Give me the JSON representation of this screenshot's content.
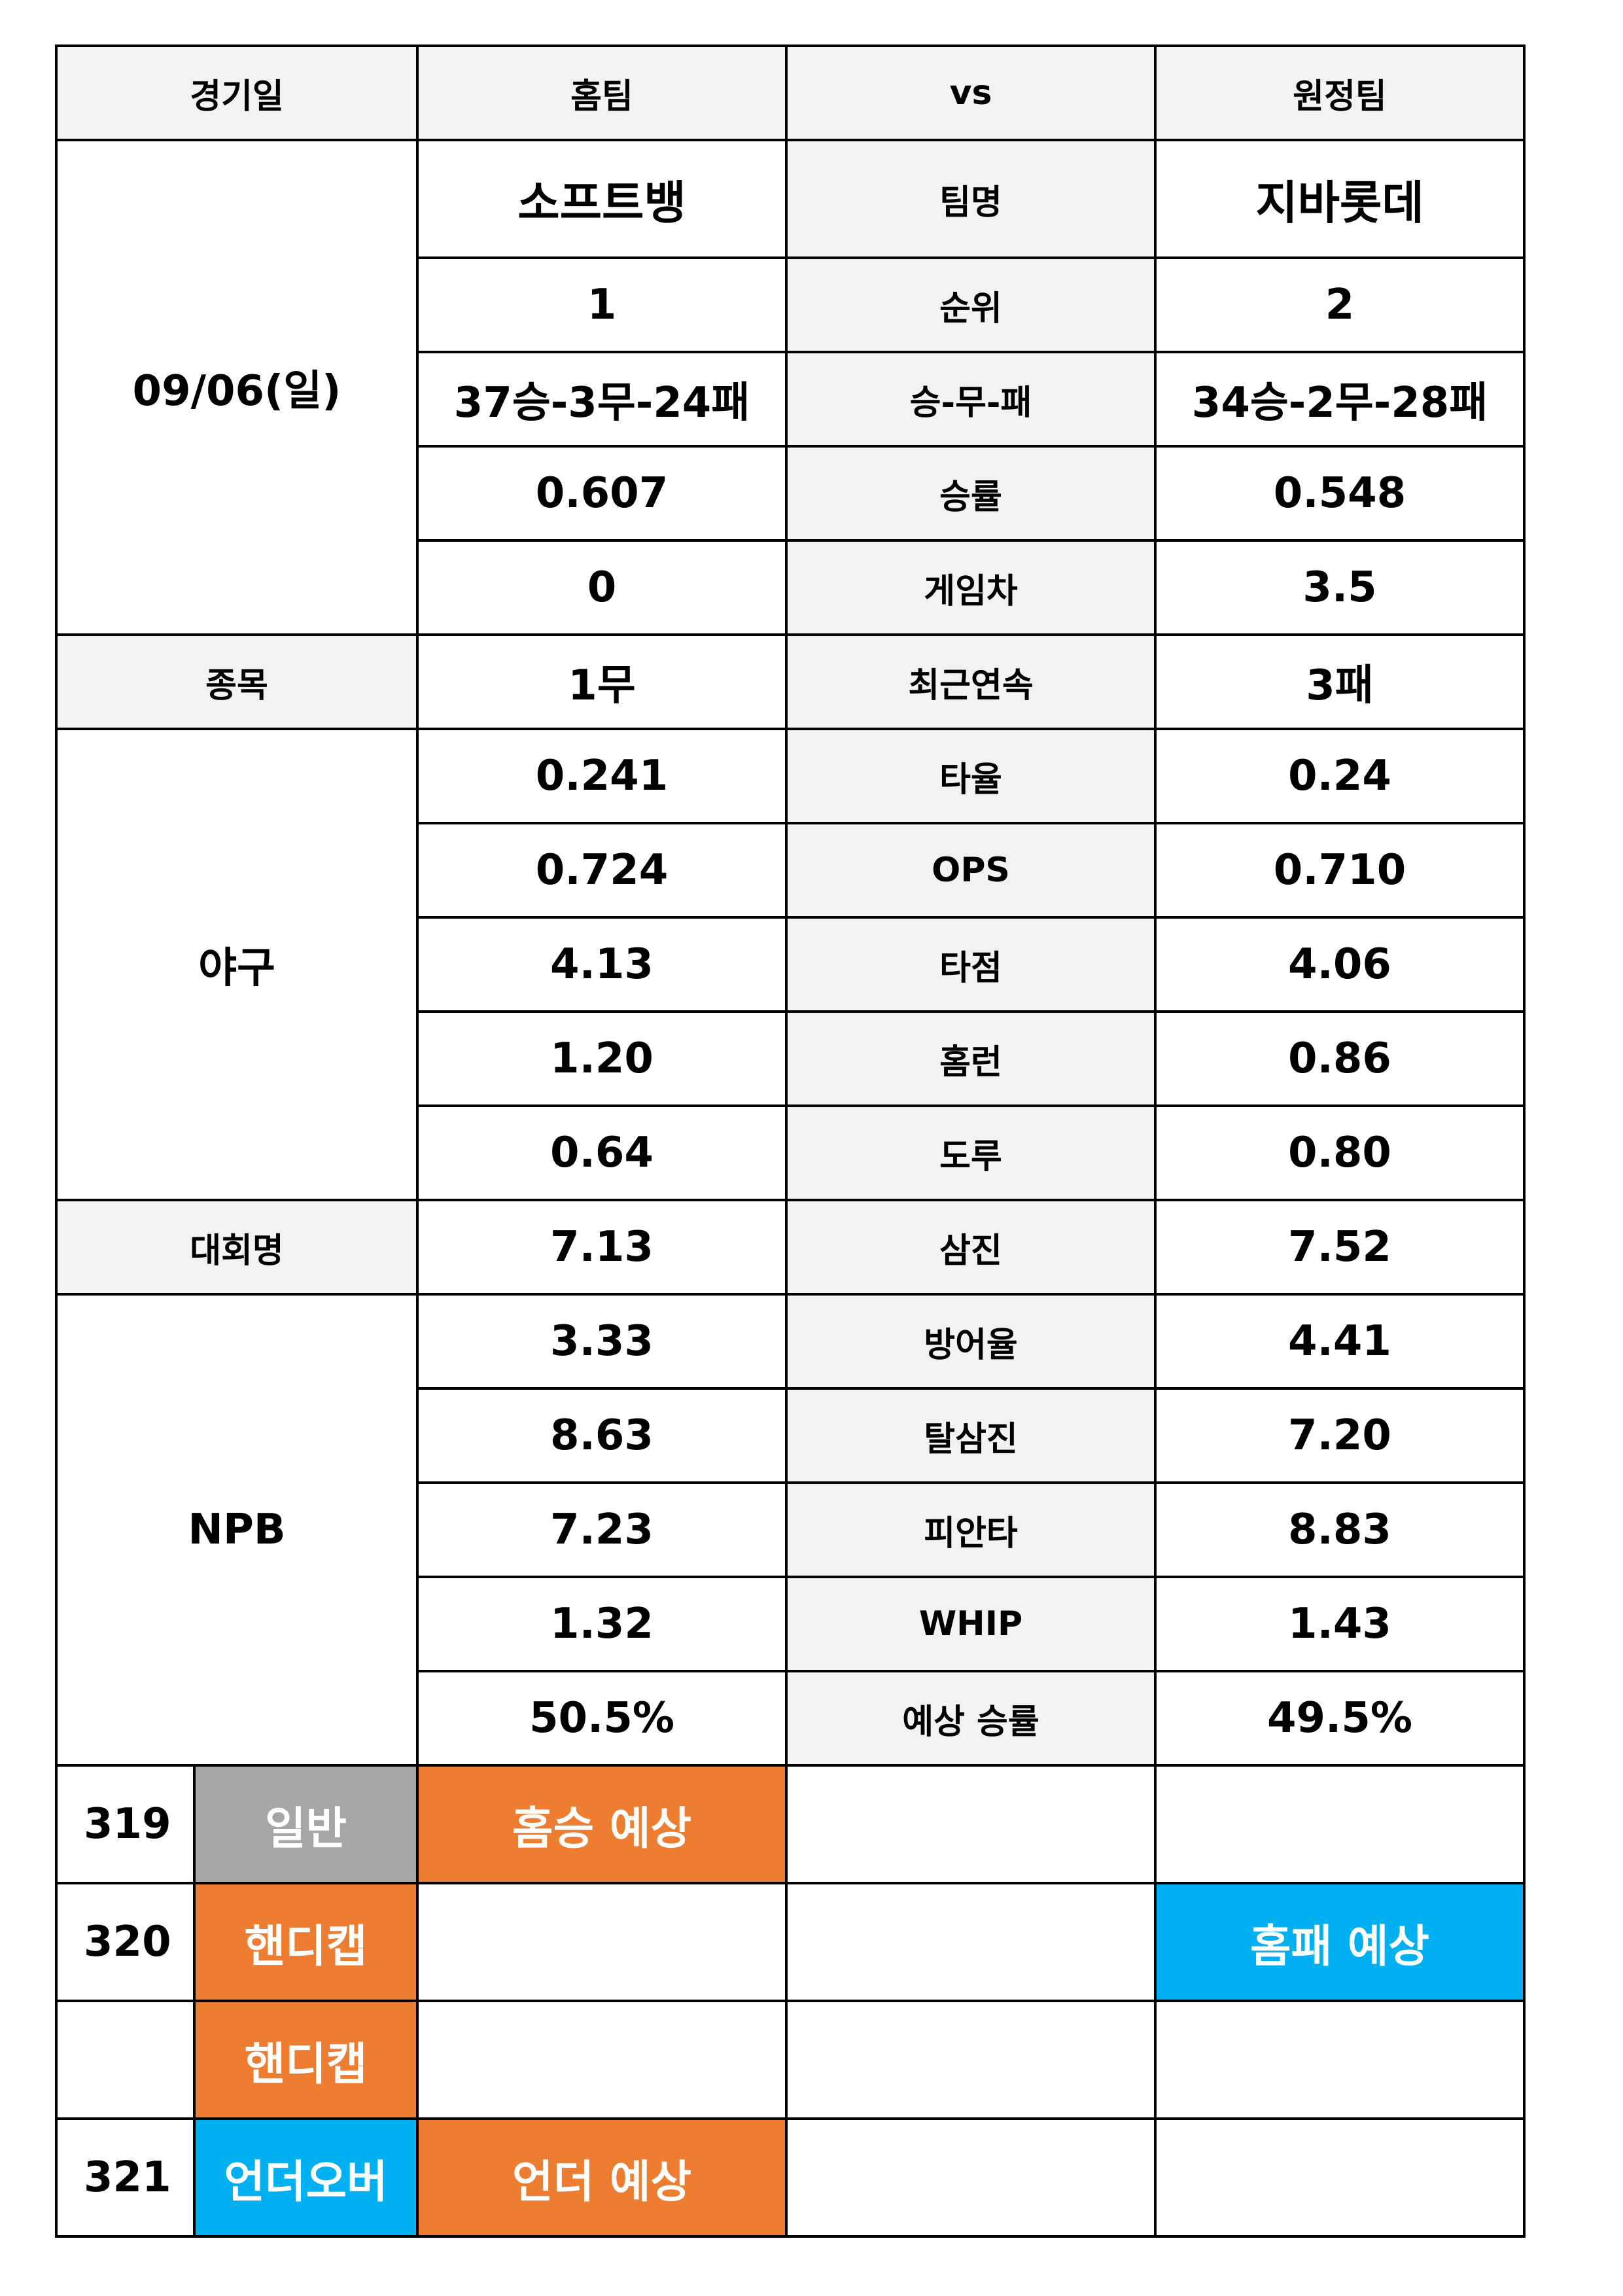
{
  "header": {
    "date_label": "경기일",
    "home_label": "홈팀",
    "vs_label": "vs",
    "away_label": "원정팀"
  },
  "match": {
    "date": "09/06(일)",
    "sport_label": "종목",
    "sport": "야구",
    "league_label": "대회명",
    "league": "NPB"
  },
  "stats": [
    {
      "label": "팀명",
      "home": "소프트뱅",
      "away": "지바롯데"
    },
    {
      "label": "순위",
      "home": "1",
      "away": "2"
    },
    {
      "label": "승-무-패",
      "home": "37승-3무-24패",
      "away": "34승-2무-28패"
    },
    {
      "label": "승률",
      "home": "0.607",
      "away": "0.548"
    },
    {
      "label": "게임차",
      "home": "0",
      "away": "3.5"
    },
    {
      "label": "최근연속",
      "home": "1무",
      "away": "3패"
    },
    {
      "label": "타율",
      "home": "0.241",
      "away": "0.24"
    },
    {
      "label": "OPS",
      "home": "0.724",
      "away": "0.710"
    },
    {
      "label": "타점",
      "home": "4.13",
      "away": "4.06"
    },
    {
      "label": "홈런",
      "home": "1.20",
      "away": "0.86"
    },
    {
      "label": "도루",
      "home": "0.64",
      "away": "0.80"
    },
    {
      "label": "삼진",
      "home": "7.13",
      "away": "7.52"
    },
    {
      "label": "방어율",
      "home": "3.33",
      "away": "4.41"
    },
    {
      "label": "탈삼진",
      "home": "8.63",
      "away": "7.20"
    },
    {
      "label": "피안타",
      "home": "7.23",
      "away": "8.83"
    },
    {
      "label": "WHIP",
      "home": "1.32",
      "away": "1.43"
    },
    {
      "label": "예상 승률",
      "home": "50.5%",
      "away": "49.5%"
    }
  ],
  "picks": [
    {
      "number": "319",
      "type": "일반",
      "home": "홈승 예상",
      "draw": "",
      "away": ""
    },
    {
      "number": "320",
      "type": "핸디캡",
      "home": "",
      "draw": "",
      "away": "홈패 예상"
    },
    {
      "number": "",
      "type": "핸디캡",
      "home": "",
      "draw": "",
      "away": ""
    },
    {
      "number": "321",
      "type": "언더오버",
      "home": "언더 예상",
      "draw": "",
      "away": ""
    }
  ],
  "colors": {
    "gray": "#a6a6a6",
    "orange": "#ed7d31",
    "blue": "#00b0f0",
    "label_bg": "#f2f2f2"
  }
}
